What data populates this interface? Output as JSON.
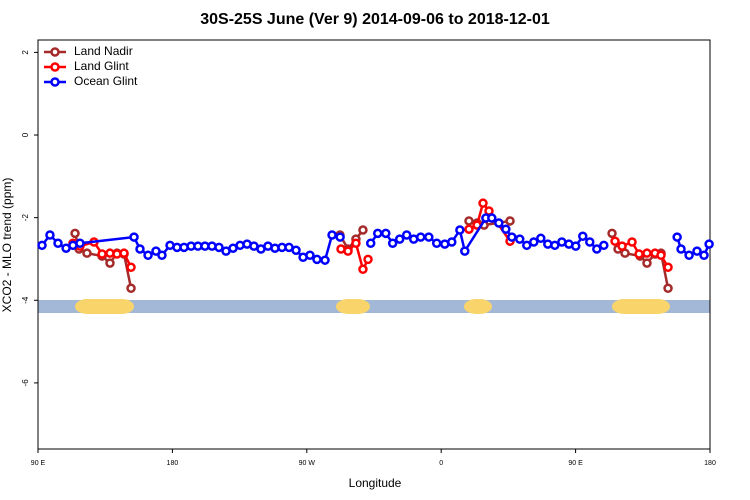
{
  "chart_data": {
    "type": "line",
    "title": "30S-25S June (Ver 9)   2014-09-06 to 2018-12-01",
    "x_label": "Longitude",
    "y_label": "XCO2 - MLO trend (ppm)",
    "xlim": [
      90,
      540
    ],
    "xticks": [
      {
        "value": 90,
        "label": "90 E"
      },
      180,
      {
        "value": 270,
        "label": "90 W"
      },
      {
        "value": 360,
        "label": "0"
      },
      {
        "value": 450,
        "label": "90 E"
      },
      {
        "value": 540,
        "label": "180"
      }
    ],
    "ylim": [
      -7.6,
      2.3
    ],
    "yticks": [
      -6,
      -4,
      -2,
      0,
      2
    ],
    "legend": "top-left",
    "series": [
      {
        "name": "Land Nadir",
        "color": "#a52a2a",
        "x": [
          114.8,
          117.5,
          122.8,
          132.9,
          138.2,
          142.9,
          147.6,
          152.3,
          null,
          292.2,
          297.6,
          302.9,
          307.6,
          null,
          378.6,
          384,
          388.7,
          406.1,
          null,
          474.4,
          478.4,
          483.1,
          493.2,
          497.8,
          503.2,
          507.2,
          511.9
        ],
        "values": [
          -2.38,
          -2.76,
          -2.86,
          -2.93,
          -3.1,
          -2.86,
          -2.88,
          -3.71,
          null,
          -2.42,
          -2.76,
          -2.52,
          -2.3,
          null,
          -2.08,
          -2.13,
          -2.18,
          -2.08,
          null,
          -2.38,
          -2.76,
          -2.86,
          -2.93,
          -3.1,
          -2.88,
          -2.86,
          -3.71
        ]
      },
      {
        "name": "Land Glint",
        "color": "#ff0000",
        "x": [
          113.4,
          118.1,
          127.5,
          132.9,
          138.2,
          142.9,
          147.6,
          152.3,
          null,
          292.9,
          297.6,
          302.9,
          307.6,
          311,
          null,
          378.6,
          384,
          388,
          392,
          406.1,
          null,
          476.4,
          481.1,
          487.8,
          492.5,
          497.8,
          503.2,
          507.2,
          511.9
        ],
        "values": [
          -2.62,
          -2.69,
          -2.59,
          -2.88,
          -2.86,
          -2.88,
          -2.86,
          -3.2,
          null,
          -2.76,
          -2.81,
          -2.62,
          -3.25,
          -3.01,
          null,
          -2.28,
          -2.18,
          -1.65,
          -1.84,
          -2.57,
          null,
          -2.57,
          -2.69,
          -2.59,
          -2.88,
          -2.86,
          -2.86,
          -2.91,
          -3.2
        ]
      },
      {
        "name": "Ocean Glint",
        "color": "#0000ff",
        "x": [
          92.7,
          98,
          103.4,
          108.8,
          113.4,
          118.1,
          154.3,
          158.3,
          163.7,
          169,
          173,
          178.4,
          183.1,
          187.8,
          192.5,
          197.1,
          201.8,
          206.5,
          211.2,
          215.9,
          220.6,
          225.3,
          230,
          234.6,
          239.3,
          244,
          248.7,
          253.4,
          258.1,
          262.8,
          267.5,
          272.1,
          276.8,
          282.2,
          286.9,
          292.3,
          null,
          312.8,
          317.5,
          322.9,
          327.5,
          332.2,
          336.9,
          341.6,
          346.3,
          351.7,
          357,
          362.4,
          367.1,
          372.5,
          375.8,
          389.9,
          393.9,
          398.6,
          403.3,
          407.3,
          412.6,
          417.3,
          422,
          426.7,
          431.4,
          436.1,
          440.8,
          445.5,
          450.1,
          454.8,
          459.5,
          464.2,
          468.9,
          null,
          518,
          520.6,
          526,
          531.3,
          536,
          539.4
        ],
        "values": [
          -2.67,
          -2.42,
          -2.62,
          -2.74,
          -2.67,
          -2.62,
          -2.47,
          -2.76,
          -2.91,
          -2.81,
          -2.91,
          -2.67,
          -2.72,
          -2.72,
          -2.69,
          -2.69,
          -2.69,
          -2.69,
          -2.72,
          -2.81,
          -2.74,
          -2.67,
          -2.64,
          -2.69,
          -2.76,
          -2.69,
          -2.74,
          -2.72,
          -2.72,
          -2.79,
          -2.96,
          -2.91,
          -3.01,
          -3.03,
          -2.42,
          -2.47,
          null,
          -2.62,
          -2.38,
          -2.38,
          -2.62,
          -2.52,
          -2.42,
          -2.52,
          -2.47,
          -2.47,
          -2.62,
          -2.64,
          -2.59,
          -2.3,
          -2.81,
          -2.01,
          -2.01,
          -2.13,
          -2.28,
          -2.47,
          -2.52,
          -2.67,
          -2.59,
          -2.5,
          -2.64,
          -2.67,
          -2.59,
          -2.64,
          -2.69,
          -2.45,
          -2.59,
          -2.76,
          -2.67,
          null,
          -2.47,
          -2.76,
          -2.91,
          -2.81,
          -2.91,
          -2.64
        ]
      }
    ]
  }
}
